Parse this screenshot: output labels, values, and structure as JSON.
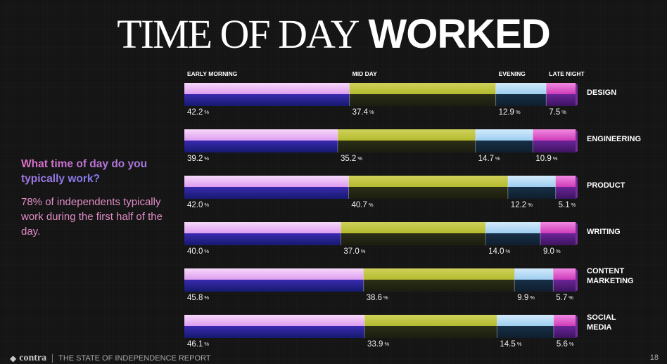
{
  "title": {
    "thin": "TIME OF DAY",
    "bold": "WORKED"
  },
  "sidebar": {
    "question": "What time of day do you typically work?",
    "answer": "78% of independents typically work during the first half of the day."
  },
  "footer": {
    "logo": "contra",
    "report": "THE STATE OF INDEPENDENCE REPORT",
    "page": "18"
  },
  "colors": {
    "early_morning": "#d98cf2",
    "mid_day": "#c9cd44",
    "evening": "#a9d6f4",
    "late_night": "#e050c6"
  },
  "chart_data": {
    "type": "bar",
    "stacked": true,
    "orientation": "horizontal",
    "categories": [
      "DESIGN",
      "ENGINEERING",
      "PRODUCT",
      "WRITING",
      "CONTENT MARKETING",
      "SOCIAL MEDIA"
    ],
    "series": [
      {
        "name": "EARLY MORNING",
        "values": [
          42.2,
          39.2,
          42.0,
          40.0,
          45.8,
          46.1
        ]
      },
      {
        "name": "MID DAY",
        "values": [
          37.4,
          35.2,
          40.7,
          37.0,
          38.6,
          33.9
        ]
      },
      {
        "name": "EVENING",
        "values": [
          12.9,
          14.7,
          12.2,
          14.0,
          9.9,
          14.5
        ]
      },
      {
        "name": "LATE NIGHT",
        "values": [
          7.5,
          10.9,
          5.1,
          9.0,
          5.7,
          5.6
        ]
      }
    ],
    "value_suffix": "%",
    "legend_position": "top"
  }
}
